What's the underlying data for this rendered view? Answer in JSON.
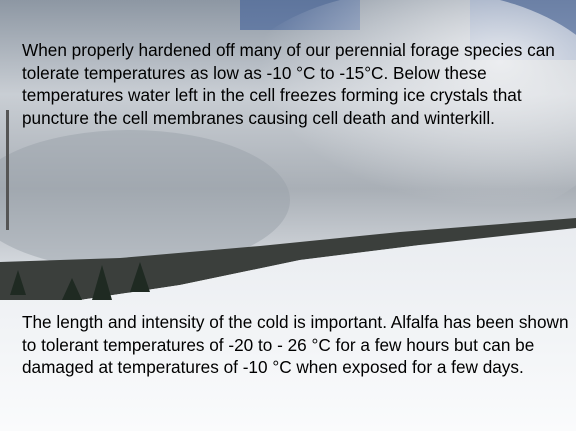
{
  "paragraphs": [
    "When properly hardened off many of our perennial forage species can tolerate temperatures as low as -10 °C to -15°C. Below these temperatures water left in the cell freezes forming ice crystals that puncture the cell membranes causing cell death and winterkill.",
    "The length and intensity of the cold is important. Alfalfa has been shown to tolerant temperatures of -20 to - 26 °C for a few hours but can be damaged at temperatures of -10 °C when exposed for a few days."
  ]
}
